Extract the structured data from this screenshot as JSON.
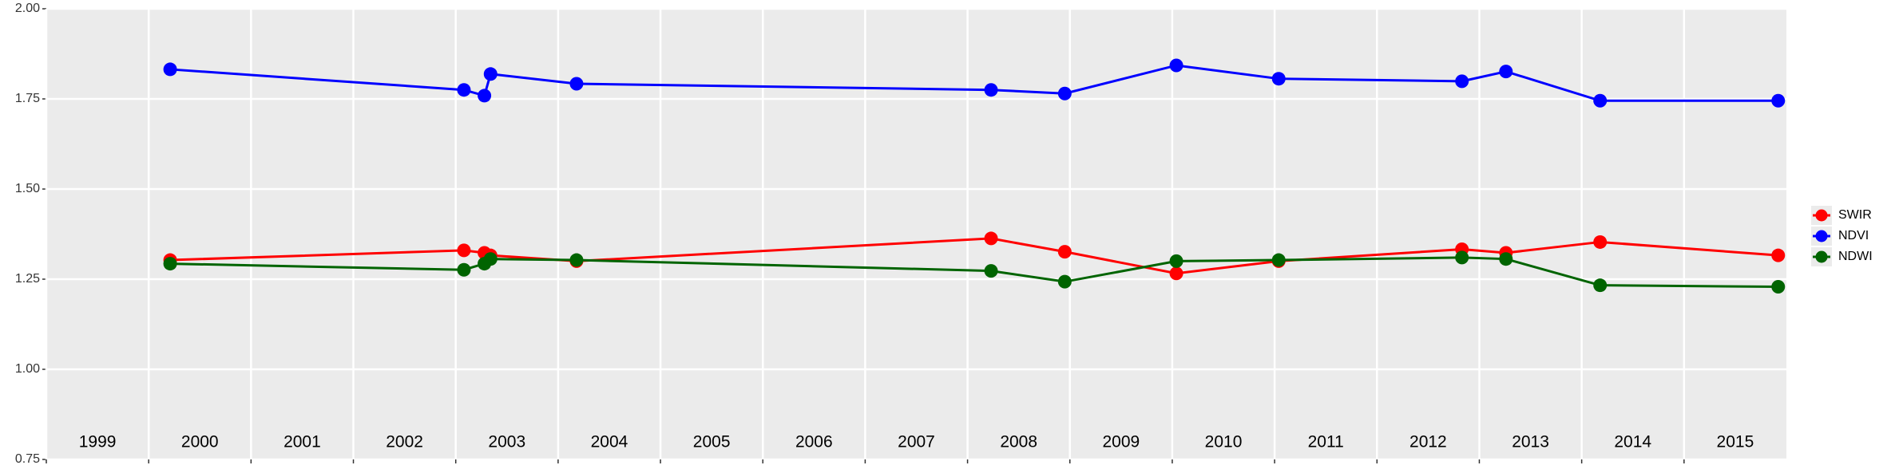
{
  "chart_data": {
    "type": "line",
    "xlim": [
      1999,
      2016
    ],
    "xticks": [
      1999,
      2000,
      2001,
      2002,
      2003,
      2004,
      2005,
      2006,
      2007,
      2008,
      2009,
      2010,
      2011,
      2012,
      2013,
      2014,
      2015
    ],
    "ylim": [
      0.75,
      2.0
    ],
    "yticks": [
      0.75,
      {
        "value": 1.0,
        "label": "1.00"
      },
      {
        "value": 1.25,
        "label": "1.25"
      },
      {
        "value": 1.5,
        "label": "1.50"
      },
      {
        "value": 1.75,
        "label": "1.75"
      },
      {
        "value": 2.0,
        "label": "2.00"
      }
    ],
    "grid": true,
    "legend": "right",
    "x": [
      2000.21,
      2003.08,
      2003.28,
      2003.34,
      2004.18,
      2008.23,
      2008.95,
      2010.04,
      2011.04,
      2012.83,
      2013.26,
      2014.18,
      2015.92
    ],
    "series": [
      {
        "name": "SWIR",
        "color": "#ff0000",
        "values": [
          1.303,
          1.33,
          1.323,
          1.316,
          1.3,
          1.363,
          1.326,
          1.266,
          1.3,
          1.333,
          1.323,
          1.353,
          1.316
        ]
      },
      {
        "name": "NDVI",
        "color": "#0000ff",
        "values": [
          1.832,
          1.775,
          1.759,
          1.819,
          1.792,
          1.775,
          1.765,
          1.843,
          1.806,
          1.799,
          1.826,
          1.745,
          1.745
        ]
      },
      {
        "name": "NDWI",
        "color": "#006400",
        "values": [
          1.293,
          1.276,
          1.293,
          1.306,
          1.303,
          1.273,
          1.243,
          1.3,
          1.303,
          1.31,
          1.306,
          1.233,
          1.229
        ]
      }
    ]
  }
}
